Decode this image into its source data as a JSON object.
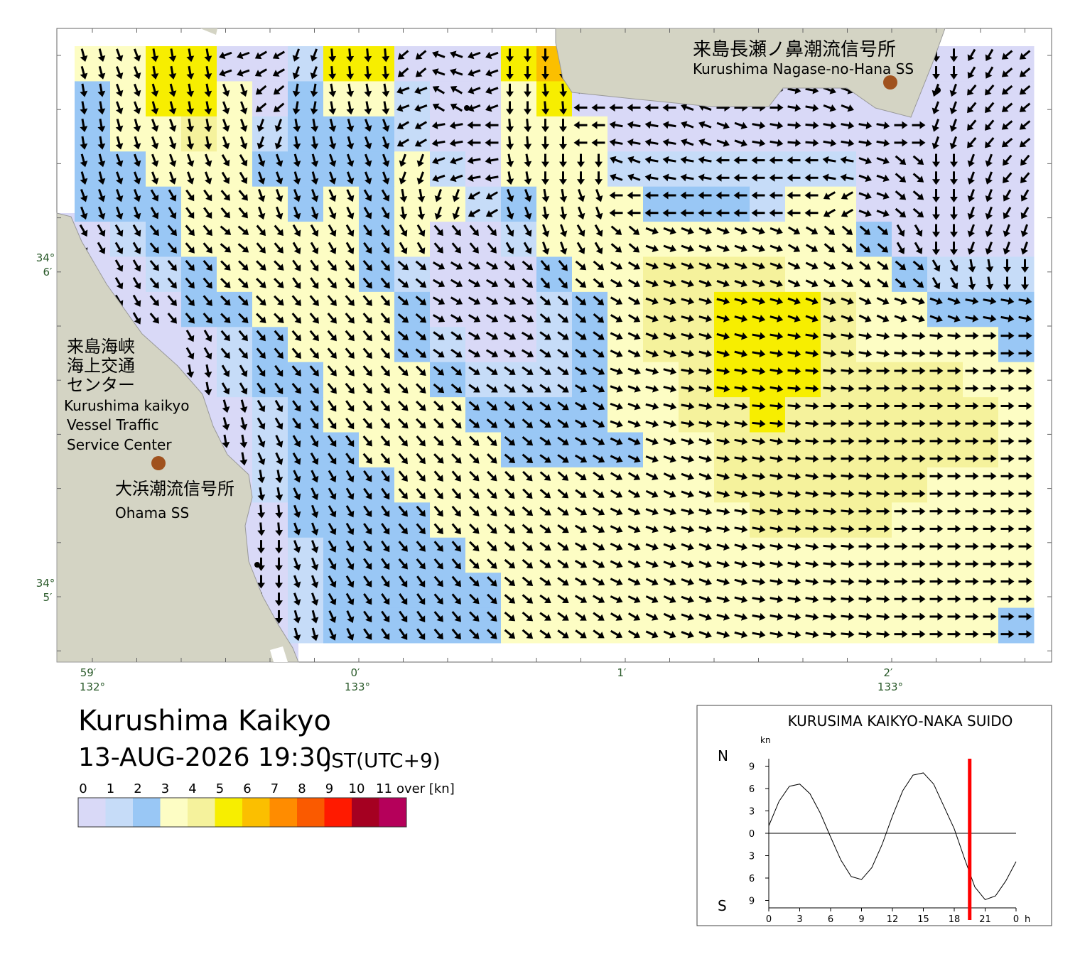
{
  "map": {
    "stations": [
      {
        "name_ja": "来島長瀬ノ鼻潮流信号所",
        "name_en": "Kurushima Nagase-no-Hana SS"
      },
      {
        "name_ja": "大浜潮流信号所",
        "name_en": "Ohama SS"
      }
    ],
    "center": {
      "name_ja": [
        "来島海峡",
        "海上交通",
        "センター"
      ],
      "name_en": [
        "Kurushima kaikyo",
        "Vessel Traffic",
        "Service Center"
      ]
    },
    "lon_labels": [
      {
        "minute": "59′",
        "degree": "132°"
      },
      {
        "minute": "0′",
        "degree": "133°"
      },
      {
        "minute": "1′"
      },
      {
        "minute": "2′",
        "degree": "133°"
      }
    ],
    "lat_labels": [
      {
        "degree": "34°",
        "minute": "6′"
      },
      {
        "degree": "34°",
        "minute": "5′"
      }
    ],
    "title": "Kurushima Kaikyo",
    "datetime": "13-AUG-2026 19:30",
    "timezone": "JST(UTC+9)",
    "legend": {
      "ticks": [
        0,
        1,
        2,
        3,
        4,
        5,
        6,
        7,
        8,
        9,
        10,
        11
      ],
      "over": "over [kn]",
      "colors": [
        "#d9d9f7",
        "#c6dcf8",
        "#99c7f5",
        "#fdfdc4",
        "#f5f29c",
        "#f7ee00",
        "#fbbf00",
        "#ff8c00",
        "#fa5a00",
        "#ff1a00",
        "#a50021",
        "#b5005a"
      ]
    },
    "speed": [
      [
        3.5,
        3.5,
        5.5,
        5.5,
        0.5,
        0.5,
        1.5,
        5.5,
        5.5,
        0.5,
        0.5,
        0.5,
        5.5,
        6.5,
        null,
        null,
        null,
        null,
        null,
        null,
        null,
        null,
        null,
        null,
        0.5,
        0.5,
        0.5
      ],
      [
        2.5,
        3.5,
        5.5,
        5.5,
        3.5,
        0.5,
        2.5,
        3.5,
        3.5,
        1.5,
        0.5,
        0.5,
        3.5,
        5.5,
        0.5,
        0.5,
        0.5,
        0.5,
        0.5,
        0.5,
        0.5,
        0.5,
        null,
        null,
        0.5,
        0.5,
        0.5
      ],
      [
        2.5,
        3.5,
        3.5,
        4.5,
        3.5,
        1.5,
        2.5,
        2.5,
        2.5,
        1.5,
        0.5,
        0.5,
        3.5,
        3.5,
        3.5,
        0.5,
        0.5,
        0.5,
        0.5,
        0.5,
        0.5,
        0.5,
        0.5,
        0.5,
        0.5,
        0.5,
        0.5
      ],
      [
        2.5,
        2.5,
        3.5,
        3.5,
        3.5,
        2.5,
        2.5,
        2.5,
        2.5,
        3.5,
        1.5,
        0.5,
        3.5,
        3.5,
        3.5,
        1.5,
        1.5,
        1.5,
        1.5,
        1.5,
        1.5,
        1.5,
        0.5,
        0.5,
        0.5,
        0.5,
        0.5
      ],
      [
        2.5,
        2.5,
        2.5,
        3.5,
        3.5,
        3.5,
        2.5,
        3.5,
        2.5,
        3.5,
        3.5,
        1.5,
        2.5,
        3.5,
        3.5,
        3.5,
        2.5,
        2.5,
        2.5,
        1.5,
        3.5,
        3.5,
        0.5,
        0.5,
        0.5,
        0.5,
        0.5
      ],
      [
        0.5,
        1.5,
        2.5,
        3.5,
        3.5,
        3.5,
        3.5,
        3.5,
        2.5,
        3.5,
        0.5,
        0.5,
        1.5,
        3.5,
        3.5,
        3.5,
        3.5,
        3.5,
        3.5,
        3.5,
        3.5,
        3.5,
        2.5,
        0.5,
        0.5,
        0.5,
        0.5
      ],
      [
        null,
        0.5,
        1.5,
        2.5,
        3.5,
        3.5,
        3.5,
        3.5,
        2.5,
        1.5,
        0.5,
        0.5,
        0.5,
        2.5,
        3.5,
        3.5,
        4.5,
        4.5,
        4.5,
        4.5,
        3.5,
        3.5,
        3.5,
        2.5,
        1.5,
        1.5,
        1.5
      ],
      [
        null,
        0.5,
        0.5,
        2.5,
        2.5,
        3.5,
        3.5,
        3.5,
        3.5,
        2.5,
        0.5,
        0.5,
        0.5,
        1.5,
        2.5,
        3.5,
        4.5,
        4.5,
        5.5,
        5.5,
        5.5,
        4.5,
        3.5,
        3.5,
        2.5,
        2.5,
        2.5
      ],
      [
        null,
        null,
        null,
        0.5,
        1.5,
        2.5,
        3.5,
        3.5,
        3.5,
        2.5,
        1.5,
        0.5,
        0.5,
        1.5,
        2.5,
        3.5,
        4.5,
        4.5,
        5.5,
        5.5,
        5.5,
        4.5,
        3.5,
        3.5,
        3.5,
        3.5,
        2.5
      ],
      [
        null,
        null,
        null,
        0.5,
        1.5,
        2.5,
        2.5,
        3.5,
        3.5,
        3.5,
        2.5,
        1.5,
        1.5,
        1.5,
        2.5,
        3.5,
        3.5,
        4.5,
        5.5,
        5.5,
        5.5,
        4.5,
        4.5,
        4.5,
        4.5,
        3.5,
        3.5
      ],
      [
        null,
        null,
        null,
        null,
        0.5,
        1.5,
        2.5,
        3.5,
        3.5,
        3.5,
        3.5,
        2.5,
        2.5,
        2.5,
        2.5,
        3.5,
        3.5,
        4.5,
        4.5,
        5.5,
        4.5,
        4.5,
        4.5,
        4.5,
        4.5,
        4.5,
        3.5
      ],
      [
        null,
        null,
        null,
        null,
        0.5,
        1.5,
        2.5,
        2.5,
        3.5,
        3.5,
        3.5,
        3.5,
        2.5,
        2.5,
        2.5,
        2.5,
        3.5,
        3.5,
        4.5,
        4.5,
        4.5,
        4.5,
        4.5,
        4.5,
        4.5,
        4.5,
        3.5
      ],
      [
        null,
        null,
        null,
        null,
        null,
        1.5,
        2.5,
        2.5,
        2.5,
        3.5,
        3.5,
        3.5,
        3.5,
        3.5,
        3.5,
        3.5,
        3.5,
        3.5,
        4.5,
        4.5,
        4.5,
        4.5,
        4.5,
        4.5,
        3.5,
        3.5,
        3.5
      ],
      [
        null,
        null,
        null,
        null,
        null,
        0.5,
        2.5,
        2.5,
        2.5,
        2.5,
        3.5,
        3.5,
        3.5,
        3.5,
        3.5,
        3.5,
        3.5,
        3.5,
        3.5,
        4.5,
        4.5,
        4.5,
        4.5,
        3.5,
        3.5,
        3.5,
        3.5
      ],
      [
        null,
        null,
        null,
        null,
        null,
        0.5,
        1.5,
        2.5,
        2.5,
        2.5,
        2.5,
        3.5,
        3.5,
        3.5,
        3.5,
        3.5,
        3.5,
        3.5,
        3.5,
        3.5,
        3.5,
        3.5,
        3.5,
        3.5,
        3.5,
        3.5,
        3.5
      ],
      [
        null,
        null,
        null,
        null,
        null,
        0.5,
        1.5,
        2.5,
        2.5,
        2.5,
        2.5,
        2.5,
        3.5,
        3.5,
        3.5,
        3.5,
        3.5,
        3.5,
        3.5,
        3.5,
        3.5,
        3.5,
        3.5,
        3.5,
        3.5,
        3.5,
        3.5
      ],
      [
        null,
        null,
        null,
        null,
        null,
        0.5,
        1.5,
        2.5,
        2.5,
        2.5,
        2.5,
        2.5,
        3.5,
        3.5,
        3.5,
        3.5,
        3.5,
        3.5,
        3.5,
        3.5,
        3.5,
        3.5,
        3.5,
        3.5,
        3.5,
        3.5,
        2.5
      ]
    ],
    "direction": [
      [
        165,
        160,
        170,
        170,
        250,
        240,
        200,
        175,
        175,
        230,
        290,
        250,
        180,
        180,
        null,
        null,
        null,
        null,
        null,
        null,
        null,
        null,
        null,
        null,
        180,
        210,
        230
      ],
      [
        170,
        160,
        165,
        170,
        160,
        230,
        190,
        170,
        170,
        250,
        300,
        250,
        180,
        175,
        270,
        270,
        270,
        290,
        90,
        90,
        100,
        110,
        null,
        null,
        200,
        220,
        230
      ],
      [
        170,
        165,
        160,
        170,
        160,
        200,
        170,
        165,
        160,
        240,
        260,
        270,
        175,
        180,
        270,
        280,
        280,
        290,
        110,
        100,
        95,
        100,
        100,
        90,
        200,
        220,
        230
      ],
      [
        165,
        160,
        160,
        160,
        150,
        160,
        165,
        160,
        160,
        200,
        250,
        260,
        170,
        180,
        180,
        290,
        280,
        280,
        270,
        270,
        270,
        280,
        110,
        130,
        180,
        200,
        220
      ],
      [
        160,
        160,
        150,
        145,
        140,
        160,
        160,
        155,
        150,
        170,
        200,
        240,
        160,
        170,
        160,
        270,
        270,
        270,
        270,
        270,
        270,
        240,
        110,
        130,
        180,
        200,
        210
      ],
      [
        150,
        150,
        140,
        140,
        130,
        140,
        150,
        150,
        145,
        150,
        140,
        140,
        150,
        160,
        150,
        130,
        110,
        110,
        110,
        110,
        120,
        130,
        130,
        150,
        180,
        200,
        200
      ],
      [
        null,
        150,
        140,
        140,
        135,
        135,
        145,
        140,
        140,
        130,
        120,
        120,
        130,
        140,
        130,
        120,
        110,
        110,
        110,
        110,
        115,
        120,
        125,
        130,
        150,
        170,
        180
      ],
      [
        null,
        150,
        140,
        140,
        135,
        135,
        140,
        140,
        140,
        130,
        120,
        120,
        120,
        130,
        130,
        120,
        110,
        105,
        105,
        105,
        110,
        110,
        115,
        110,
        110,
        100,
        100
      ],
      [
        null,
        null,
        null,
        150,
        140,
        140,
        140,
        140,
        140,
        130,
        125,
        120,
        120,
        125,
        125,
        115,
        110,
        105,
        105,
        100,
        100,
        100,
        100,
        95,
        95,
        90,
        90
      ],
      [
        null,
        null,
        null,
        170,
        150,
        145,
        140,
        140,
        140,
        135,
        130,
        125,
        125,
        125,
        120,
        110,
        105,
        100,
        100,
        100,
        95,
        95,
        90,
        90,
        90,
        90,
        90
      ],
      [
        null,
        null,
        null,
        null,
        165,
        150,
        145,
        145,
        140,
        135,
        135,
        130,
        130,
        125,
        120,
        110,
        105,
        100,
        100,
        95,
        95,
        90,
        90,
        90,
        90,
        90,
        90
      ],
      [
        null,
        null,
        null,
        null,
        170,
        155,
        150,
        145,
        140,
        140,
        135,
        135,
        130,
        125,
        120,
        115,
        110,
        105,
        100,
        100,
        95,
        90,
        90,
        90,
        90,
        90,
        90
      ],
      [
        null,
        null,
        null,
        null,
        null,
        170,
        155,
        150,
        145,
        140,
        140,
        135,
        135,
        130,
        125,
        120,
        115,
        110,
        105,
        100,
        100,
        95,
        95,
        90,
        90,
        90,
        90
      ],
      [
        null,
        null,
        null,
        null,
        null,
        175,
        160,
        150,
        145,
        140,
        140,
        135,
        130,
        125,
        120,
        115,
        110,
        105,
        100,
        100,
        95,
        95,
        90,
        90,
        90,
        90,
        90
      ],
      [
        null,
        null,
        null,
        null,
        null,
        180,
        160,
        150,
        145,
        140,
        140,
        135,
        130,
        125,
        120,
        115,
        110,
        110,
        105,
        100,
        100,
        95,
        90,
        90,
        90,
        90,
        90
      ],
      [
        null,
        null,
        null,
        null,
        null,
        180,
        160,
        150,
        145,
        145,
        140,
        135,
        130,
        125,
        120,
        115,
        115,
        110,
        105,
        100,
        100,
        95,
        95,
        90,
        90,
        90,
        90
      ],
      [
        null,
        null,
        null,
        null,
        null,
        180,
        165,
        155,
        145,
        145,
        140,
        135,
        130,
        125,
        125,
        120,
        115,
        110,
        105,
        100,
        100,
        95,
        95,
        90,
        90,
        90,
        90
      ]
    ]
  },
  "chart_data": {
    "type": "line",
    "title": "KURUSIMA KAIKYO-NAKA SUIDO",
    "y_unit": "kn",
    "north": "N",
    "south": "S",
    "x_unit": "h",
    "x": [
      0,
      1,
      2,
      3,
      4,
      5,
      6,
      7,
      8,
      9,
      10,
      11,
      12,
      13,
      14,
      15,
      16,
      17,
      18,
      19,
      20,
      21,
      22,
      23,
      24
    ],
    "values": [
      1,
      4.3,
      6.3,
      6.6,
      5.3,
      2.7,
      -0.5,
      -3.6,
      -5.8,
      -6.2,
      -4.6,
      -1.5,
      2.3,
      5.7,
      7.8,
      8.1,
      6.6,
      3.6,
      0.6,
      -3.4,
      -7.2,
      -8.9,
      -8.4,
      -6.4,
      -3.8
    ],
    "color": "#000000",
    "now": 19.5,
    "now_color": "#ff0000",
    "xlim": [
      0,
      24
    ],
    "xticks": [
      0,
      3,
      6,
      9,
      12,
      15,
      18,
      21,
      {
        "value": 24,
        "label": "0"
      }
    ],
    "ylim": [
      -10,
      10
    ],
    "yticks": [
      {
        "value": 9,
        "label": "9"
      },
      6,
      3,
      0,
      {
        "value": -3,
        "label": "3"
      },
      {
        "value": -6,
        "label": "6"
      },
      {
        "value": -9,
        "label": "9"
      }
    ]
  }
}
